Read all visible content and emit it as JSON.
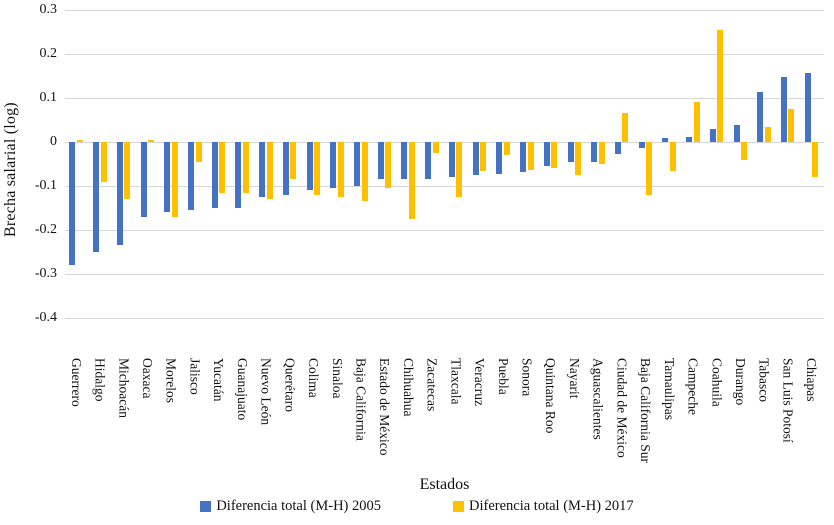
{
  "y_axis": {
    "title": "Brecha salarial (log)",
    "ticks": [
      "0.3",
      "0.2",
      "0.1",
      "0",
      "-0.1",
      "-0.2",
      "-0.3",
      "-0.4"
    ]
  },
  "x_axis": {
    "title": "Estados"
  },
  "legend": {
    "items": [
      {
        "label": "Diferencia total (M-H) 2005",
        "color": "#4472C4"
      },
      {
        "label": "Diferencia total (M-H) 2017",
        "color": "#FFC000"
      }
    ]
  },
  "chart_data": {
    "type": "bar",
    "title": "",
    "xlabel": "Estados",
    "ylabel": "Brecha salarial (log)",
    "ylim": [
      -0.4,
      0.3
    ],
    "ytick_step": 0.1,
    "grid": true,
    "legend_position": "bottom",
    "categories": [
      "Guerrero",
      "Hidalgo",
      "Michoacán",
      "Oaxaca",
      "Morelos",
      "Jalisco",
      "Yucatán",
      "Guanajuato",
      "Nuevo León",
      "Querétaro",
      "Colima",
      "Sinaloa",
      "Baja California",
      "Estado de México",
      "Chihuahua",
      "Zacatecas",
      "Tlaxcala",
      "Veracruz",
      "Puebla",
      "Sonora",
      "Quintana Roo",
      "Nayarit",
      "Aguascalientes",
      "Ciudad de México",
      "Baja California Sur",
      "Tamaulipas",
      "Campeche",
      "Coahuila",
      "Durango",
      "Tabasco",
      "San Luis Potosí",
      "Chiapas"
    ],
    "series": [
      {
        "name": "Diferencia total (M-H) 2005",
        "color": "#4472C4",
        "values": [
          -0.28,
          -0.25,
          -0.235,
          -0.17,
          -0.16,
          -0.155,
          -0.15,
          -0.15,
          -0.125,
          -0.12,
          -0.11,
          -0.105,
          -0.1,
          -0.085,
          -0.085,
          -0.085,
          -0.08,
          -0.075,
          -0.073,
          -0.068,
          -0.055,
          -0.045,
          -0.045,
          -0.027,
          -0.013,
          0.01,
          0.012,
          0.03,
          0.038,
          0.113,
          0.148,
          0.157
        ]
      },
      {
        "name": "Diferencia total (M-H) 2017",
        "color": "#FFC000",
        "values": [
          0.005,
          -0.09,
          -0.13,
          0.005,
          -0.17,
          -0.045,
          -0.115,
          -0.115,
          -0.13,
          -0.085,
          -0.12,
          -0.125,
          -0.135,
          -0.105,
          -0.175,
          -0.025,
          -0.125,
          -0.065,
          -0.03,
          -0.063,
          -0.06,
          -0.075,
          -0.05,
          0.065,
          -0.12,
          -0.065,
          0.09,
          0.255,
          -0.04,
          0.035,
          0.075,
          -0.08
        ]
      }
    ]
  }
}
